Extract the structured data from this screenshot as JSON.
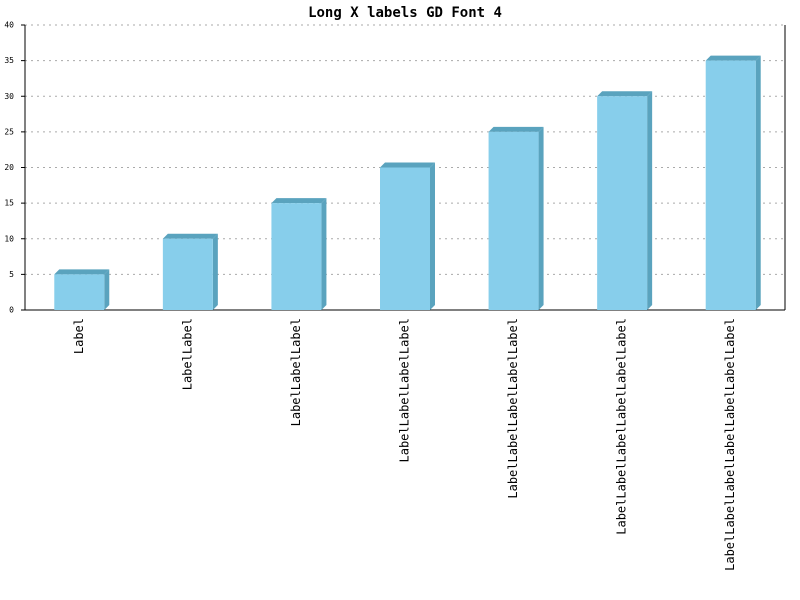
{
  "chart_data": {
    "type": "bar",
    "title": "Long X labels GD Font 4",
    "categories": [
      "Label",
      "LabelLabel",
      "LabelLabelLabel",
      "LabelLabelLabelLabel",
      "LabelLabelLabelLabelLabel",
      "LabelLabelLabelLabelLabelLabel",
      "LabelLabelLabelLabelLabelLabelLabel"
    ],
    "values": [
      5,
      10,
      15,
      20,
      25,
      30,
      35
    ],
    "color": "#87ceeb",
    "side_color": "#5aa3be",
    "ylim": [
      0,
      40
    ],
    "yticks": [
      0,
      5,
      10,
      15,
      20,
      25,
      30,
      35,
      40
    ],
    "grid": true
  }
}
